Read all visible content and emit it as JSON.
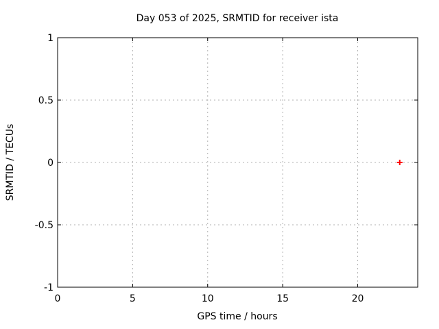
{
  "window": {
    "background": "#ffffff"
  },
  "chart_data": {
    "type": "scatter",
    "title": "Day 053 of 2025, SRMTID for receiver ista",
    "xlabel": "GPS time / hours",
    "ylabel": "SRMTID / TECUs",
    "xlim": [
      0,
      24
    ],
    "ylim": [
      -1,
      1
    ],
    "xticks": [
      0,
      5,
      10,
      15,
      20
    ],
    "xtick_labels": [
      "0",
      "5",
      "10",
      "15",
      "20"
    ],
    "yticks": [
      -1,
      -0.5,
      0,
      0.5,
      1
    ],
    "ytick_labels": [
      "-1",
      "-0.5",
      "0",
      "0.5",
      "1"
    ],
    "grid": true,
    "grid_style": "dotted",
    "legend": "none",
    "series": [
      {
        "name": "SRMTID",
        "marker": "plus",
        "color": "#ff0000",
        "points": [
          {
            "x": 22.8,
            "y": 0.0
          }
        ]
      }
    ],
    "colors": {
      "frame": "#000000",
      "grid": "#b0b0b0",
      "text": "#000000",
      "marker": "#ff0000",
      "background": "#ffffff"
    }
  }
}
